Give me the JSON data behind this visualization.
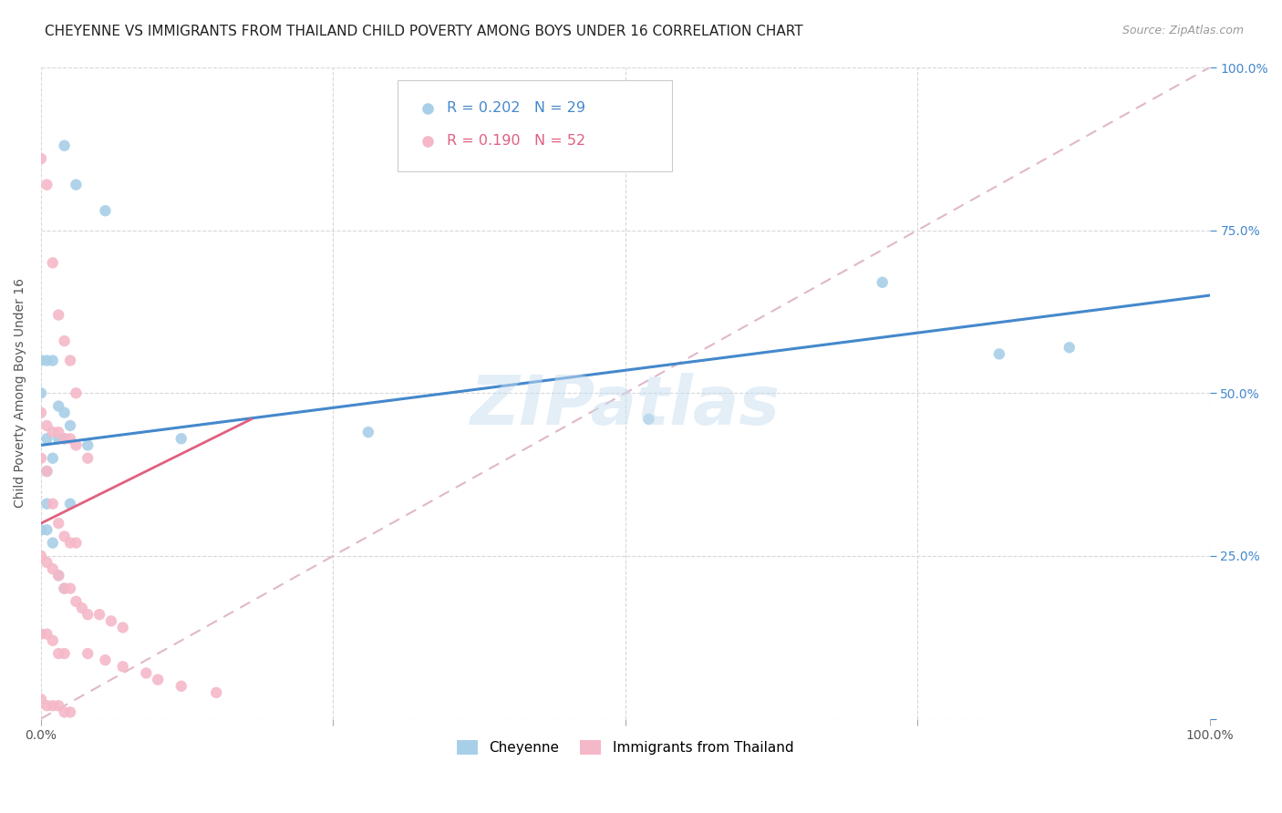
{
  "title": "CHEYENNE VS IMMIGRANTS FROM THAILAND CHILD POVERTY AMONG BOYS UNDER 16 CORRELATION CHART",
  "source": "Source: ZipAtlas.com",
  "ylabel": "Child Poverty Among Boys Under 16",
  "watermark": "ZIPatlas",
  "legend_blue_r": "0.202",
  "legend_blue_n": "29",
  "legend_pink_r": "0.190",
  "legend_pink_n": "52",
  "legend_label_blue": "Cheyenne",
  "legend_label_pink": "Immigrants from Thailand",
  "blue_color": "#a8cfe8",
  "pink_color": "#f5b8c8",
  "blue_line_color": "#4488cc",
  "pink_line_color": "#e06080",
  "diag_color": "#e0b8c8",
  "blue_scatter_x": [
    0.02,
    0.03,
    0.055,
    0.0,
    0.005,
    0.01,
    0.015,
    0.02,
    0.005,
    0.015,
    0.02,
    0.025,
    0.04,
    0.0,
    0.005,
    0.01,
    0.52,
    0.72,
    0.82,
    0.88,
    0.12,
    0.28,
    0.005,
    0.025,
    0.0,
    0.005,
    0.01,
    0.015,
    0.02
  ],
  "blue_scatter_y": [
    0.88,
    0.82,
    0.78,
    0.55,
    0.55,
    0.55,
    0.48,
    0.47,
    0.43,
    0.43,
    0.43,
    0.45,
    0.42,
    0.5,
    0.38,
    0.4,
    0.46,
    0.67,
    0.56,
    0.57,
    0.43,
    0.44,
    0.33,
    0.33,
    0.29,
    0.29,
    0.27,
    0.22,
    0.2
  ],
  "pink_scatter_x": [
    0.0,
    0.005,
    0.01,
    0.015,
    0.02,
    0.025,
    0.03,
    0.0,
    0.005,
    0.01,
    0.015,
    0.02,
    0.025,
    0.03,
    0.04,
    0.0,
    0.005,
    0.01,
    0.015,
    0.02,
    0.025,
    0.03,
    0.0,
    0.005,
    0.01,
    0.015,
    0.02,
    0.025,
    0.03,
    0.035,
    0.04,
    0.05,
    0.06,
    0.07,
    0.0,
    0.005,
    0.01,
    0.015,
    0.02,
    0.04,
    0.055,
    0.07,
    0.09,
    0.1,
    0.12,
    0.15,
    0.0,
    0.005,
    0.01,
    0.015,
    0.02,
    0.025
  ],
  "pink_scatter_y": [
    0.86,
    0.82,
    0.7,
    0.62,
    0.58,
    0.55,
    0.5,
    0.47,
    0.45,
    0.44,
    0.44,
    0.43,
    0.43,
    0.42,
    0.4,
    0.4,
    0.38,
    0.33,
    0.3,
    0.28,
    0.27,
    0.27,
    0.25,
    0.24,
    0.23,
    0.22,
    0.2,
    0.2,
    0.18,
    0.17,
    0.16,
    0.16,
    0.15,
    0.14,
    0.13,
    0.13,
    0.12,
    0.1,
    0.1,
    0.1,
    0.09,
    0.08,
    0.07,
    0.06,
    0.05,
    0.04,
    0.03,
    0.02,
    0.02,
    0.02,
    0.01,
    0.01
  ],
  "blue_line_x0": 0.0,
  "blue_line_y0": 0.42,
  "blue_line_x1": 1.0,
  "blue_line_y1": 0.65,
  "pink_line_x0": 0.0,
  "pink_line_y0": 0.3,
  "pink_line_x1": 0.18,
  "pink_line_y1": 0.46,
  "xlim": [
    0.0,
    1.0
  ],
  "ylim": [
    0.0,
    1.0
  ],
  "xticks": [
    0.0,
    0.25,
    0.5,
    0.75,
    1.0
  ],
  "yticks": [
    0.0,
    0.25,
    0.5,
    0.75,
    1.0
  ],
  "title_fontsize": 11,
  "axis_label_fontsize": 10,
  "tick_fontsize": 10,
  "marker_size": 80
}
